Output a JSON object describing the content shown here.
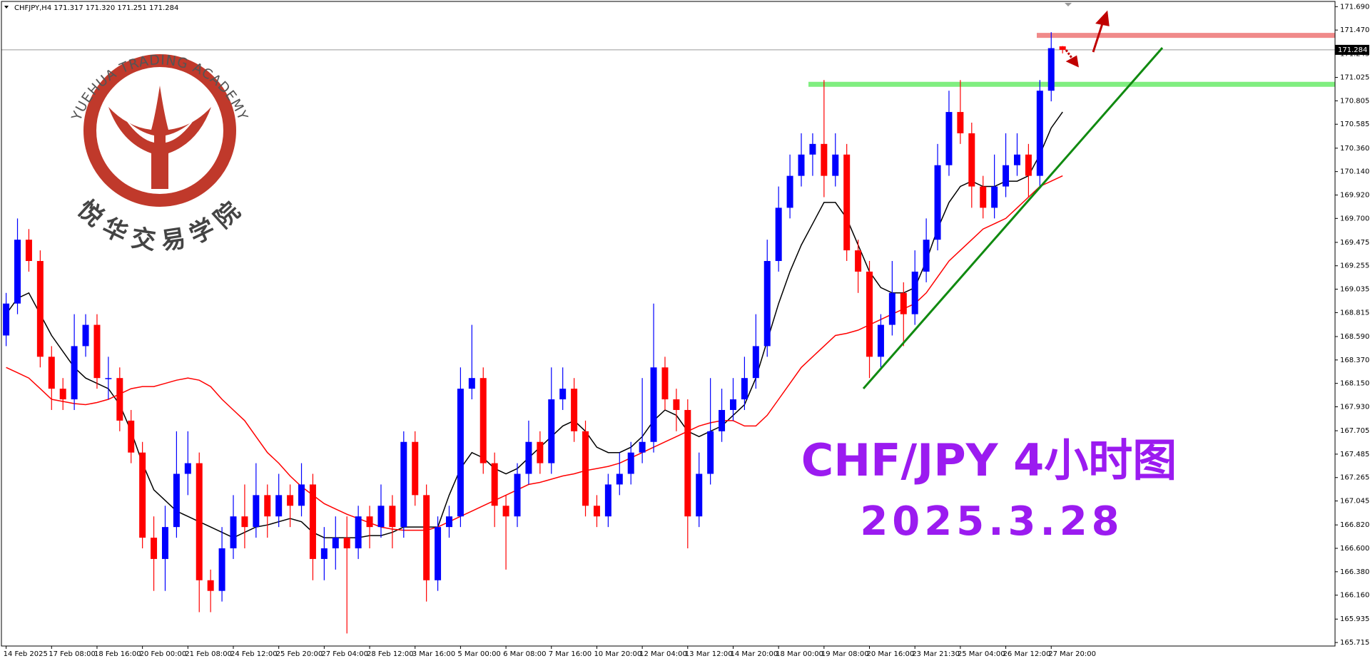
{
  "chart_data": {
    "type": "candlestick",
    "title": "CHFJPY,H4 171.317 171.320 171.251 171.284",
    "categories": [
      "14 Feb 2025",
      null,
      null,
      null,
      "17 Feb 08:00",
      null,
      null,
      null,
      "18 Feb 16:00",
      null,
      null,
      null,
      "20 Feb 00:00",
      null,
      null,
      null,
      "21 Feb 08:00",
      null,
      null,
      null,
      "24 Feb 12:00",
      null,
      null,
      null,
      "25 Feb 20:00",
      null,
      null,
      null,
      "27 Feb 04:00",
      null,
      null,
      null,
      "28 Feb 12:00",
      null,
      null,
      null,
      "3 Mar 16:00",
      null,
      null,
      null,
      "5 Mar 00:00",
      null,
      null,
      null,
      "6 Mar 08:00",
      null,
      null,
      null,
      "7 Mar 16:00",
      null,
      null,
      null,
      "10 Mar 20:00",
      null,
      null,
      null,
      "12 Mar 04:00",
      null,
      null,
      null,
      "13 Mar 12:00",
      null,
      null,
      null,
      "14 Mar 20:00",
      null,
      null,
      null,
      "18 Mar 00:00",
      null,
      null,
      null,
      "19 Mar 08:00",
      null,
      null,
      null,
      "20 Mar 16:00",
      null,
      null,
      null,
      "23 Mar 21:30",
      null,
      null,
      null,
      "25 Mar 04:00",
      null,
      null,
      null,
      "26 Mar 12:00",
      null,
      null,
      null,
      "27 Mar 20:00",
      null
    ],
    "open": [
      168.6,
      168.9,
      169.5,
      169.3,
      168.4,
      168.1,
      168.0,
      168.5,
      168.7,
      168.2,
      168.2,
      167.8,
      167.5,
      166.7,
      166.5,
      166.8,
      167.3,
      167.4,
      166.3,
      166.2,
      166.6,
      166.9,
      166.8,
      167.1,
      166.9,
      167.1,
      167.0,
      167.2,
      166.5,
      166.6,
      166.7,
      166.6,
      166.9,
      166.8,
      167.0,
      166.8,
      167.6,
      167.1,
      166.3,
      166.8,
      166.9,
      168.1,
      168.2,
      167.4,
      167.0,
      166.9,
      167.3,
      167.6,
      167.4,
      168.0,
      168.1,
      167.7,
      167.0,
      166.9,
      167.2,
      167.3,
      167.5,
      167.6,
      168.3,
      168.0,
      167.9,
      166.9,
      167.3,
      167.7,
      167.9,
      168.0,
      168.2,
      168.5,
      169.3,
      169.8,
      170.1,
      170.3,
      170.4,
      170.1,
      170.3,
      169.4,
      169.2,
      168.4,
      168.7,
      169.0,
      168.8,
      169.2,
      169.5,
      170.2,
      170.7,
      170.5,
      170.0,
      169.8,
      170.0,
      170.2,
      170.3,
      170.1,
      170.9,
      171.317
    ],
    "high": [
      169.0,
      169.7,
      169.6,
      169.4,
      168.5,
      168.2,
      168.8,
      168.8,
      168.8,
      168.4,
      168.3,
      167.9,
      167.6,
      166.9,
      167.0,
      167.7,
      167.7,
      167.5,
      166.4,
      166.8,
      167.1,
      167.2,
      167.4,
      167.2,
      167.3,
      167.2,
      167.4,
      167.3,
      166.8,
      166.9,
      166.9,
      167.0,
      167.0,
      167.2,
      167.1,
      167.7,
      167.7,
      167.2,
      166.9,
      167.0,
      168.3,
      168.7,
      168.3,
      167.5,
      167.1,
      167.4,
      167.8,
      167.7,
      168.3,
      168.3,
      168.2,
      167.8,
      167.1,
      167.3,
      167.5,
      167.6,
      168.2,
      168.9,
      168.4,
      168.1,
      168.0,
      167.5,
      168.2,
      168.1,
      168.2,
      168.4,
      168.8,
      169.5,
      170.0,
      170.3,
      170.5,
      170.5,
      171.0,
      170.5,
      170.4,
      169.5,
      169.3,
      168.8,
      169.3,
      169.1,
      169.4,
      169.7,
      170.4,
      170.9,
      171.0,
      170.6,
      170.1,
      170.3,
      170.5,
      170.5,
      170.4,
      171.0,
      171.45,
      171.32
    ],
    "low": [
      168.5,
      168.8,
      169.2,
      168.3,
      167.9,
      167.9,
      167.9,
      168.4,
      168.1,
      168.0,
      167.7,
      167.4,
      166.6,
      166.2,
      166.2,
      166.7,
      167.1,
      166.0,
      166.0,
      166.1,
      166.5,
      166.6,
      166.7,
      166.7,
      166.8,
      166.8,
      166.9,
      166.3,
      166.3,
      166.4,
      165.8,
      166.5,
      166.6,
      166.7,
      166.6,
      166.7,
      167.0,
      166.1,
      166.2,
      166.7,
      166.8,
      168.0,
      167.3,
      166.8,
      166.4,
      166.8,
      167.2,
      167.3,
      167.3,
      167.9,
      167.6,
      166.9,
      166.8,
      166.8,
      167.1,
      167.2,
      167.4,
      167.5,
      167.9,
      167.7,
      166.6,
      166.8,
      167.2,
      167.6,
      167.8,
      167.9,
      168.1,
      168.4,
      169.2,
      169.7,
      170.0,
      170.1,
      169.9,
      170.0,
      169.3,
      169.0,
      168.2,
      168.3,
      168.6,
      168.5,
      168.7,
      169.1,
      169.4,
      170.1,
      170.4,
      169.8,
      169.7,
      169.7,
      169.9,
      170.1,
      169.9,
      170.0,
      170.8,
      171.251
    ],
    "close": [
      168.9,
      169.5,
      169.3,
      168.4,
      168.1,
      168.0,
      168.5,
      168.7,
      168.2,
      168.2,
      167.8,
      167.5,
      166.7,
      166.5,
      166.8,
      167.3,
      167.4,
      166.3,
      166.2,
      166.6,
      166.9,
      166.8,
      167.1,
      166.9,
      167.1,
      167.0,
      167.2,
      166.5,
      166.6,
      166.7,
      166.6,
      166.9,
      166.8,
      167.0,
      166.8,
      167.6,
      167.1,
      166.3,
      166.8,
      166.9,
      168.1,
      168.2,
      167.4,
      167.0,
      166.9,
      167.3,
      167.6,
      167.4,
      168.0,
      168.1,
      167.7,
      167.0,
      166.9,
      167.2,
      167.3,
      167.5,
      167.6,
      168.3,
      168.0,
      167.9,
      166.9,
      167.3,
      167.7,
      167.9,
      168.0,
      168.2,
      168.5,
      169.3,
      169.8,
      170.1,
      170.3,
      170.4,
      170.1,
      170.3,
      169.4,
      169.2,
      168.4,
      168.7,
      169.0,
      168.8,
      169.2,
      169.5,
      170.2,
      170.7,
      170.5,
      170.0,
      169.8,
      170.0,
      170.2,
      170.3,
      170.1,
      170.9,
      171.3,
      171.284
    ],
    "up_color": "#0000ff",
    "down_color": "#ff0000",
    "overlays": [
      {
        "color": "#000000",
        "values": [
          168.8,
          168.95,
          169.0,
          168.8,
          168.6,
          168.45,
          168.3,
          168.2,
          168.15,
          168.1,
          167.95,
          167.7,
          167.4,
          167.15,
          167.05,
          166.95,
          166.9,
          166.85,
          166.8,
          166.75,
          166.7,
          166.75,
          166.8,
          166.82,
          166.85,
          166.88,
          166.85,
          166.75,
          166.7,
          166.7,
          166.7,
          166.7,
          166.72,
          166.72,
          166.75,
          166.8,
          166.8,
          166.8,
          166.8,
          167.1,
          167.35,
          167.5,
          167.45,
          167.35,
          167.3,
          167.35,
          167.45,
          167.55,
          167.65,
          167.75,
          167.8,
          167.7,
          167.55,
          167.5,
          167.5,
          167.55,
          167.65,
          167.8,
          167.9,
          167.85,
          167.7,
          167.65,
          167.7,
          167.75,
          167.85,
          167.95,
          168.2,
          168.55,
          168.9,
          169.2,
          169.45,
          169.65,
          169.85,
          169.85,
          169.7,
          169.45,
          169.2,
          169.05,
          169.0,
          169.0,
          169.05,
          169.3,
          169.6,
          169.85,
          170.0,
          170.05,
          170.0,
          170.0,
          170.05,
          170.05,
          170.1,
          170.3,
          170.55,
          170.7
        ]
      },
      {
        "color": "#ff0000",
        "values": [
          168.3,
          168.25,
          168.2,
          168.1,
          168.0,
          167.98,
          167.96,
          167.95,
          167.97,
          168.0,
          168.05,
          168.1,
          168.12,
          168.12,
          168.15,
          168.18,
          168.2,
          168.18,
          168.12,
          168.0,
          167.9,
          167.8,
          167.65,
          167.5,
          167.4,
          167.28,
          167.18,
          167.1,
          167.02,
          166.97,
          166.92,
          166.88,
          166.84,
          166.8,
          166.78,
          166.77,
          166.77,
          166.77,
          166.8,
          166.85,
          166.9,
          166.95,
          167.0,
          167.05,
          167.1,
          167.15,
          167.2,
          167.22,
          167.25,
          167.28,
          167.3,
          167.33,
          167.35,
          167.37,
          167.4,
          167.45,
          167.5,
          167.55,
          167.6,
          167.65,
          167.7,
          167.75,
          167.78,
          167.8,
          167.8,
          167.75,
          167.75,
          167.85,
          168.0,
          168.15,
          168.3,
          168.4,
          168.5,
          168.6,
          168.62,
          168.65,
          168.7,
          168.75,
          168.8,
          168.85,
          168.9,
          169.0,
          169.15,
          169.3,
          169.4,
          169.5,
          169.6,
          169.65,
          169.7,
          169.8,
          169.9,
          170.0,
          170.05,
          170.1
        ]
      }
    ],
    "levels": [
      {
        "value": 170.96,
        "color": "#80ee80"
      },
      {
        "value": 171.42,
        "color": "#f08a8a"
      }
    ],
    "ylim": [
      165.682,
      171.739
    ],
    "yticks": [
      {
        "value": 171.69,
        "label": "171.690"
      },
      {
        "value": 171.47,
        "label": "171.470"
      },
      {
        "value": 171.245,
        "label": "171.245"
      },
      {
        "value": 171.025,
        "label": "171.025"
      },
      {
        "value": 170.805,
        "label": "170.805"
      },
      {
        "value": 170.585,
        "label": "170.585"
      },
      {
        "value": 170.36,
        "label": "170.360"
      },
      {
        "value": 170.14,
        "label": "170.140"
      },
      {
        "value": 169.92,
        "label": "169.920"
      },
      {
        "value": 169.7,
        "label": "169.700"
      },
      {
        "value": 169.475,
        "label": "169.475"
      },
      {
        "value": 169.255,
        "label": "169.255"
      },
      {
        "value": 169.035,
        "label": "169.035"
      },
      {
        "value": 168.815,
        "label": "168.815"
      },
      {
        "value": 168.59,
        "label": "168.590"
      },
      {
        "value": 168.37,
        "label": "168.370"
      },
      {
        "value": 168.15,
        "label": "168.150"
      },
      {
        "value": 167.93,
        "label": "167.930"
      },
      {
        "value": 167.705,
        "label": "167.705"
      },
      {
        "value": 167.485,
        "label": "167.485"
      },
      {
        "value": 167.265,
        "label": "167.265"
      },
      {
        "value": 167.045,
        "label": "167.045"
      },
      {
        "value": 166.82,
        "label": "166.820"
      },
      {
        "value": 166.6,
        "label": "166.600"
      },
      {
        "value": 166.38,
        "label": "166.380"
      },
      {
        "value": 166.16,
        "label": "166.160"
      },
      {
        "value": 165.935,
        "label": "165.935"
      },
      {
        "value": 165.715,
        "label": "165.715"
      }
    ],
    "annotations": [
      "CHF/JPY 4小时图",
      "2025.3.28"
    ],
    "logo": {
      "arc_text": "YUEHUA TRADING ACADEMY",
      "name": "悦华交易学院"
    }
  }
}
